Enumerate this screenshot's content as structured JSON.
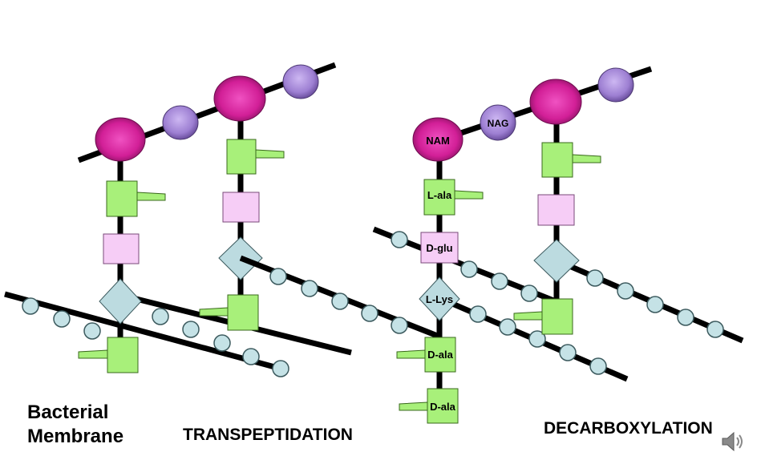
{
  "labels": {
    "nam": "NAM",
    "nag": "NAG",
    "l_ala": "L-ala",
    "d_glu": "D-glu",
    "l_lys": "L-Lys",
    "d_ala_1": "D-ala",
    "d_ala_2": "D-ala"
  },
  "captions": {
    "membrane_line1": "Bacterial",
    "membrane_line2": "Membrane",
    "transpeptidation": "TRANSPEPTIDATION",
    "decarboxylation": "DECARBOXYLATION"
  },
  "icons": {
    "speaker": "speaker-icon"
  },
  "colors": {
    "nam": "#d9259f",
    "nag": "#9b7fd0",
    "amino_green": "#a8f07a",
    "dglu_pink": "#f6cdf6",
    "lys_teal": "#bcdbe0",
    "bead": "#c5e2e6"
  }
}
